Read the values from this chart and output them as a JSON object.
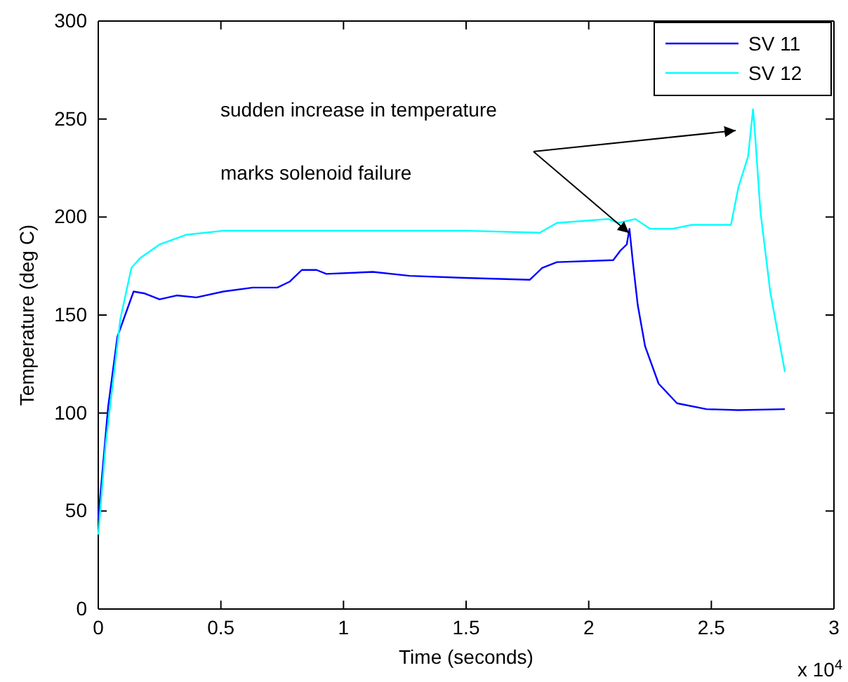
{
  "chart_data": {
    "type": "line",
    "xlabel": "Time (seconds)",
    "ylabel": "Temperature (deg C)",
    "xlim": [
      0,
      3
    ],
    "xticks": [
      0,
      0.5,
      1,
      1.5,
      2,
      2.5,
      3
    ],
    "ylim": [
      0,
      300
    ],
    "yticks": [
      0,
      50,
      100,
      150,
      200,
      250,
      300
    ],
    "legend": "top right",
    "grid": false,
    "marker": "none",
    "line_style": "solid",
    "series": [
      {
        "name": "SV 11",
        "color": "#0000ff",
        "x": [
          0,
          0.04,
          0.078,
          0.144,
          0.19,
          0.25,
          0.32,
          0.4,
          0.51,
          0.63,
          0.73,
          0.78,
          0.83,
          0.89,
          0.93,
          1.12,
          1.27,
          1.49,
          1.76,
          1.81,
          1.87,
          2.1,
          2.13,
          2.155,
          2.166,
          2.18,
          2.2,
          2.23,
          2.285,
          2.36,
          2.48,
          2.61,
          2.8
        ],
        "values": [
          46,
          103,
          139,
          162,
          161,
          158,
          160,
          159,
          162,
          164,
          164,
          167,
          173,
          173,
          171,
          172,
          170,
          169,
          168,
          174,
          177,
          178,
          183,
          186,
          194,
          177,
          155,
          134,
          115,
          105,
          102,
          101.5,
          102
        ]
      },
      {
        "name": "SV 12",
        "color": "#00ffff",
        "x": [
          0,
          0.03,
          0.09,
          0.135,
          0.17,
          0.25,
          0.36,
          0.51,
          1.0,
          1.5,
          1.8,
          1.87,
          2.08,
          2.12,
          2.19,
          2.25,
          2.34,
          2.42,
          2.58,
          2.61,
          2.65,
          2.67,
          2.68,
          2.7,
          2.74,
          2.8
        ],
        "values": [
          38,
          84,
          148,
          174,
          179,
          186,
          191,
          193,
          193,
          193,
          192,
          197,
          199,
          197,
          199,
          194,
          194,
          196,
          196,
          215,
          231,
          255,
          239,
          203,
          162,
          121
        ]
      }
    ],
    "annotations": [
      "sudden increase in temperature",
      "marks solenoid failure",
      "x 10$^{4}$"
    ]
  }
}
